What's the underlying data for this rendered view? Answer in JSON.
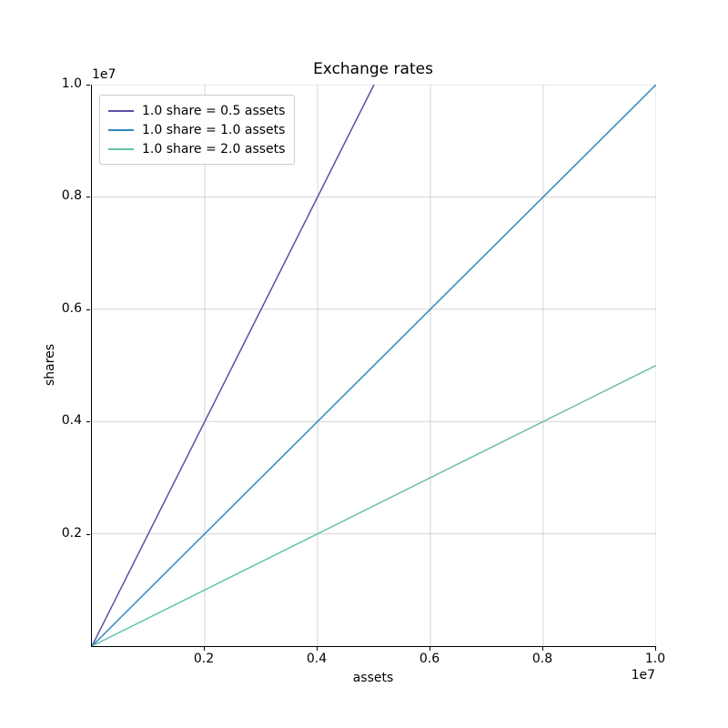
{
  "chart_data": {
    "type": "line",
    "title": "Exchange rates",
    "xlabel": "assets",
    "ylabel": "shares",
    "x_offset_text": "1e7",
    "y_offset_text": "1e7",
    "xlim": [
      0,
      10000000
    ],
    "ylim": [
      0,
      10000000
    ],
    "x_tick_values": [
      2000000,
      4000000,
      6000000,
      8000000,
      10000000
    ],
    "x_tick_labels": [
      "0.2",
      "0.4",
      "0.6",
      "0.8",
      "1.0"
    ],
    "y_tick_values": [
      2000000,
      4000000,
      6000000,
      8000000,
      10000000
    ],
    "y_tick_labels": [
      "0.2",
      "0.4",
      "0.6",
      "0.8",
      "1.0"
    ],
    "grid": true,
    "legend_position": "upper-left",
    "series": [
      {
        "name": "1.0 share = 0.5 assets",
        "color": "#5e4fa2",
        "x": [
          0,
          5000000
        ],
        "y": [
          0,
          10000000
        ]
      },
      {
        "name": "1.0 share = 1.0 assets",
        "color": "#3288bd",
        "x": [
          0,
          10000000
        ],
        "y": [
          0,
          10000000
        ]
      },
      {
        "name": "1.0 share = 2.0 assets",
        "color": "#66c2a5",
        "x": [
          0,
          10000000
        ],
        "y": [
          0,
          5000000
        ]
      }
    ],
    "colors": {
      "grid": "#d4d4d4",
      "spine": "#000000",
      "text": "#000000",
      "legend_border": "#cccccc",
      "background": "#ffffff"
    }
  }
}
